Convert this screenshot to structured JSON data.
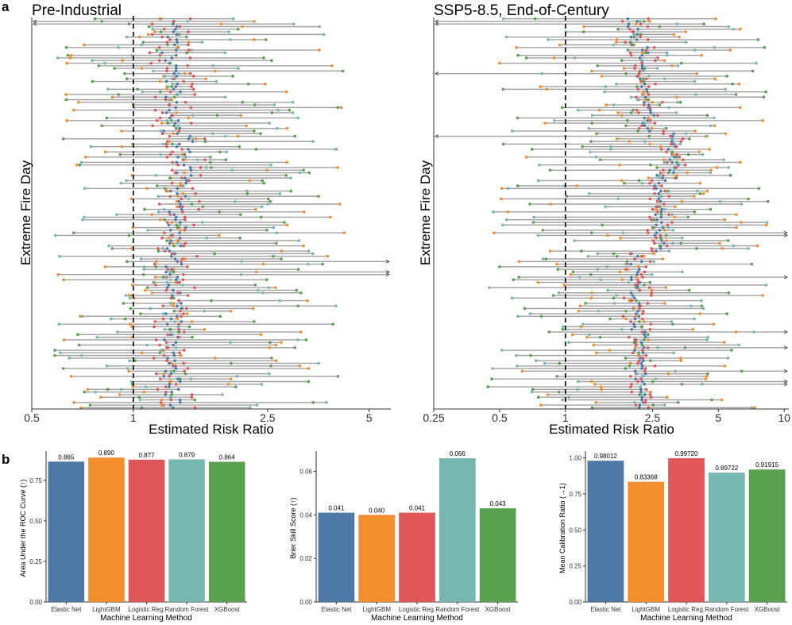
{
  "figure": {
    "panel_a_label": "a",
    "panel_b_label": "b"
  },
  "colors": {
    "elastic_net": "#4e79a7",
    "lightgbm": "#f28e2b",
    "logistic": "#e15759",
    "random_forest": "#76b7b2",
    "xgboost": "#59a14f",
    "segment": "#a0a0a0",
    "refline": "#000000"
  },
  "chart_data": [
    {
      "id": "pre_industrial",
      "type": "scatter",
      "title": "Pre-Industrial",
      "xlabel": "Estimated Risk Ratio",
      "ylabel": "Extreme Fire Day",
      "xscale": "log",
      "xlim": [
        0.5,
        5.8
      ],
      "xticks": [
        0.5,
        1,
        2.5,
        5
      ],
      "xtick_labels": [
        "0.5",
        "1",
        "2.5",
        "5"
      ],
      "reference_line": 1,
      "n_days": 150,
      "center_rr": 1.3,
      "clusters": [
        {
          "start": 0.0,
          "end": 0.13,
          "center": 1.28
        },
        {
          "start": 0.13,
          "end": 0.3,
          "center": 1.3
        },
        {
          "start": 0.3,
          "end": 0.44,
          "center": 1.42
        },
        {
          "start": 0.44,
          "end": 0.58,
          "center": 1.35
        },
        {
          "start": 0.58,
          "end": 0.78,
          "center": 1.32
        },
        {
          "start": 0.78,
          "end": 1.0,
          "center": 1.3
        }
      ],
      "spread_min_rr": 0.55,
      "spread_max_rr": 4.5,
      "overflow_right_rows": [
        0.62,
        0.65
      ],
      "overflow_left_rows": [
        0.01
      ]
    },
    {
      "id": "ssp585",
      "type": "scatter",
      "title": "SSP5-8.5, End-of-Century",
      "xlabel": "Estimated Risk Ratio",
      "ylabel": "Extreme Fire Day",
      "xscale": "log",
      "xlim": [
        0.25,
        10.5
      ],
      "xticks": [
        0.25,
        0.5,
        1,
        2.5,
        5,
        10
      ],
      "xtick_labels": [
        "0.25",
        "0.5",
        "1",
        "2.5",
        "5",
        "10"
      ],
      "reference_line": 1,
      "n_days": 150,
      "center_rr": 2.2,
      "clusters": [
        {
          "start": 0.0,
          "end": 0.07,
          "center": 2.05
        },
        {
          "start": 0.07,
          "end": 0.2,
          "center": 2.25
        },
        {
          "start": 0.2,
          "end": 0.29,
          "center": 2.4
        },
        {
          "start": 0.29,
          "end": 0.4,
          "center": 3.1
        },
        {
          "start": 0.4,
          "end": 0.6,
          "center": 2.7
        },
        {
          "start": 0.6,
          "end": 0.8,
          "center": 2.1
        },
        {
          "start": 0.8,
          "end": 1.0,
          "center": 2.2
        }
      ],
      "spread_min_rr": 0.4,
      "spread_max_rr": 9.0,
      "overflow_right_rows": [
        0.55,
        0.66,
        0.8,
        0.84,
        0.9,
        0.93
      ],
      "overflow_left_rows": [
        0.01,
        0.14,
        0.3
      ]
    },
    {
      "id": "auc",
      "type": "bar",
      "xlabel": "Machine Learning Method",
      "ylabel": "Area Under the ROC Curve (↑)",
      "categories": [
        "Elastic Net",
        "LightGBM",
        "Logistic Reg.",
        "Random Forest",
        "XGBoost"
      ],
      "values": [
        0.865,
        0.89,
        0.877,
        0.879,
        0.864
      ],
      "value_labels": [
        "0.865",
        "0.890",
        "0.877",
        "0.879",
        "0.864"
      ],
      "ylim": [
        0,
        0.93
      ],
      "yticks": [
        0,
        0.25,
        0.5,
        0.75
      ],
      "ytick_labels": [
        "0.00",
        "0.25",
        "0.50",
        "0.75"
      ]
    },
    {
      "id": "bss",
      "type": "bar",
      "xlabel": "Machine Learning Method",
      "ylabel": "Brier Skill Score (↑)",
      "categories": [
        "Elastic Net",
        "LightGBM",
        "Logistic Reg.",
        "Random Forest",
        "XGBoost"
      ],
      "values": [
        0.041,
        0.04,
        0.041,
        0.066,
        0.043
      ],
      "value_labels": [
        "0.041",
        "0.040",
        "0.041",
        "0.066",
        "0.043"
      ],
      "ylim": [
        0,
        0.0693
      ],
      "yticks": [
        0,
        0.02,
        0.04,
        0.06
      ],
      "ytick_labels": [
        "0.00",
        "0.02",
        "0.04",
        "0.06"
      ]
    },
    {
      "id": "calibration",
      "type": "bar",
      "xlabel": "Machine Learning Method",
      "ylabel": "Mean Calibration Ratio (→1)",
      "categories": [
        "Elastic Net",
        "LightGBM",
        "Logistic Reg.",
        "Random Forest",
        "XGBoost"
      ],
      "values": [
        0.98012,
        0.83368,
        0.9972,
        0.89722,
        0.91915
      ],
      "value_labels": [
        "0.98012",
        "0.83368",
        "0.99720",
        "0.89722",
        "0.91915"
      ],
      "ylim": [
        0,
        1.047
      ],
      "yticks": [
        0,
        0.25,
        0.5,
        0.75,
        1.0
      ],
      "ytick_labels": [
        "0.00",
        "0.25",
        "0.50",
        "0.75",
        "1.00"
      ]
    }
  ]
}
